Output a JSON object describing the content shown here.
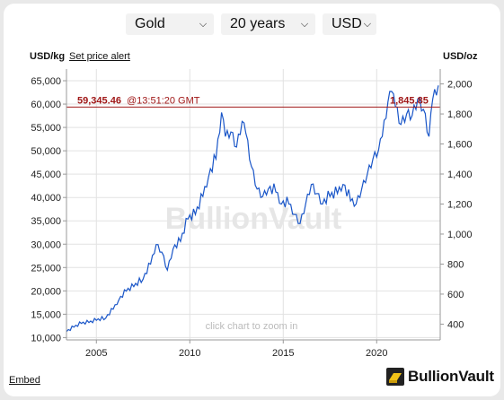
{
  "controls": {
    "metal": "Gold",
    "period": "20 years",
    "currency": "USD"
  },
  "header": {
    "left_unit": "USD/kg",
    "alert_link": "Set price alert",
    "right_unit": "USD/oz"
  },
  "price_line": {
    "kg_value": "59,345.46",
    "time": "@13:51:20 GMT",
    "oz_value": "1,845.85"
  },
  "watermark": "BullionVault",
  "zoom_hint": "click chart to zoom in",
  "footer": {
    "embed_link": "Embed",
    "brand_name": "BullionVault"
  },
  "colors": {
    "series": "#1a56c8",
    "price_line": "#a01818",
    "grid": "#e2e2e2"
  },
  "chart_data": {
    "type": "line",
    "title": "",
    "xlabel": "",
    "ylabel_left": "USD/kg",
    "ylabel_right": "USD/oz",
    "x_ticks": [
      "2005",
      "2010",
      "2015",
      "2020"
    ],
    "y_left_ticks": [
      "10,000",
      "15,000",
      "20,000",
      "25,000",
      "30,000",
      "35,000",
      "40,000",
      "45,000",
      "50,000",
      "55,000",
      "60,000",
      "65,000"
    ],
    "y_right_ticks": [
      "400",
      "600",
      "800",
      "1,000",
      "1,200",
      "1,400",
      "1,600",
      "1,800",
      "2,000"
    ],
    "xlim": [
      2003.4,
      2023.4
    ],
    "ylim_left": [
      9500,
      67500
    ],
    "ylim_right": [
      295,
      2099
    ],
    "current_price_oz": 1845.85,
    "series": [
      {
        "unit": "USD/oz",
        "x": [
          2003.4,
          2003.8,
          2004.2,
          2004.6,
          2005.0,
          2005.5,
          2005.9,
          2006.2,
          2006.6,
          2007.0,
          2007.5,
          2007.9,
          2008.2,
          2008.5,
          2008.8,
          2009.1,
          2009.5,
          2009.9,
          2010.3,
          2010.7,
          2011.0,
          2011.4,
          2011.7,
          2011.9,
          2012.2,
          2012.5,
          2012.8,
          2013.0,
          2013.3,
          2013.6,
          2013.9,
          2014.2,
          2014.6,
          2014.9,
          2015.3,
          2015.6,
          2015.9,
          2016.2,
          2016.5,
          2016.8,
          2017.1,
          2017.5,
          2017.9,
          2018.2,
          2018.6,
          2018.9,
          2019.2,
          2019.5,
          2019.8,
          2020.1,
          2020.3,
          2020.6,
          2020.8,
          2021.0,
          2021.3,
          2021.6,
          2021.9,
          2022.2,
          2022.5,
          2022.8,
          2023.0,
          2023.3
        ],
        "y": [
          350,
          380,
          405,
          410,
          425,
          440,
          500,
          560,
          620,
          650,
          700,
          800,
          930,
          880,
          760,
          900,
          950,
          1100,
          1130,
          1250,
          1380,
          1500,
          1810,
          1650,
          1680,
          1580,
          1750,
          1670,
          1450,
          1300,
          1250,
          1300,
          1280,
          1200,
          1200,
          1130,
          1070,
          1200,
          1330,
          1270,
          1200,
          1250,
          1270,
          1330,
          1220,
          1200,
          1300,
          1400,
          1500,
          1560,
          1650,
          1880,
          1950,
          1850,
          1730,
          1800,
          1790,
          1900,
          1830,
          1650,
          1900,
          1990
        ]
      }
    ]
  }
}
